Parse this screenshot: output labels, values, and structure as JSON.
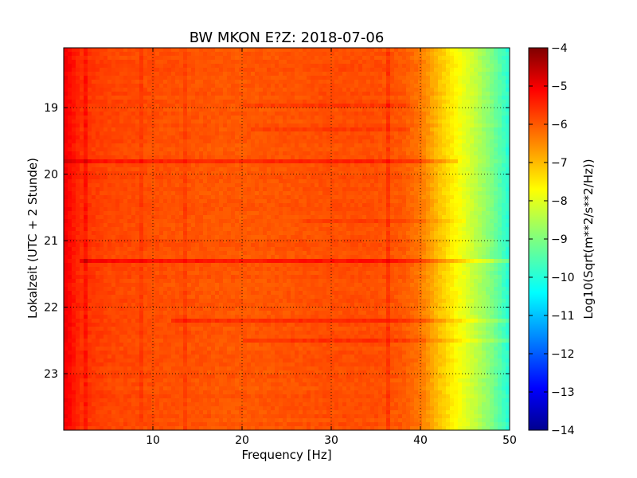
{
  "chart_data": {
    "type": "heatmap",
    "title": "BW MKON E?Z: 2018-07-06",
    "xlabel": "Frequency [Hz]",
    "ylabel": "Lokalzeit (UTC + 2 Stunde)",
    "colorbar_label": "Log10(Sqrt(m**2/s**2/Hz))",
    "xlim": [
      0,
      50
    ],
    "ylim": [
      18.1,
      23.85
    ],
    "y_inverted": true,
    "x_ticks": [
      10,
      20,
      30,
      40,
      50
    ],
    "x_tick_labels": [
      "10",
      "20",
      "30",
      "40",
      "50"
    ],
    "y_ticks": [
      19,
      20,
      21,
      22,
      23
    ],
    "y_tick_labels": [
      "19",
      "20",
      "21",
      "22",
      "23"
    ],
    "clim": [
      -14,
      -4
    ],
    "colorbar_ticks": [
      -4,
      -5,
      -6,
      -7,
      -8,
      -9,
      -10,
      -11,
      -12,
      -13,
      -14
    ],
    "colorbar_tick_labels": [
      "−4",
      "−5",
      "−6",
      "−7",
      "−8",
      "−9",
      "−10",
      "−11",
      "−12",
      "−13",
      "−14"
    ],
    "colormap": "jet",
    "grid": true,
    "frequency_profile": {
      "freq_hz": [
        0,
        1,
        2,
        5,
        10,
        20,
        30,
        35,
        38,
        40,
        42,
        44,
        46,
        48,
        50
      ],
      "log10_asd": [
        -5.1,
        -5.4,
        -5.7,
        -5.9,
        -6.0,
        -6.1,
        -6.0,
        -6.0,
        -6.1,
        -6.4,
        -7.1,
        -7.7,
        -8.3,
        -9.0,
        -9.9
      ]
    },
    "horizontal_bands": [
      {
        "time": 19.8,
        "f_from": 0,
        "f_to": 44,
        "delta": 0.4
      },
      {
        "time": 21.28,
        "f_from": 2,
        "f_to": 50,
        "delta": 0.65
      },
      {
        "time": 22.22,
        "f_from": 12,
        "f_to": 50,
        "delta": 0.4
      },
      {
        "time": 22.53,
        "f_from": 20,
        "f_to": 50,
        "delta": 0.35
      },
      {
        "time": 20.7,
        "f_from": 27,
        "f_to": 45,
        "delta": 0.2
      },
      {
        "time": 19.3,
        "f_from": 21,
        "f_to": 39,
        "delta": 0.25
      },
      {
        "time": 18.95,
        "f_from": 20,
        "f_to": 39,
        "delta": 0.25
      }
    ],
    "vertical_lines": [
      {
        "freq": 2.3,
        "delta": 0.35
      },
      {
        "freq": 36.5,
        "delta": 0.3
      },
      {
        "freq": 13.6,
        "delta": 0.2
      },
      {
        "freq": 8.8,
        "delta": 0.2
      }
    ]
  }
}
